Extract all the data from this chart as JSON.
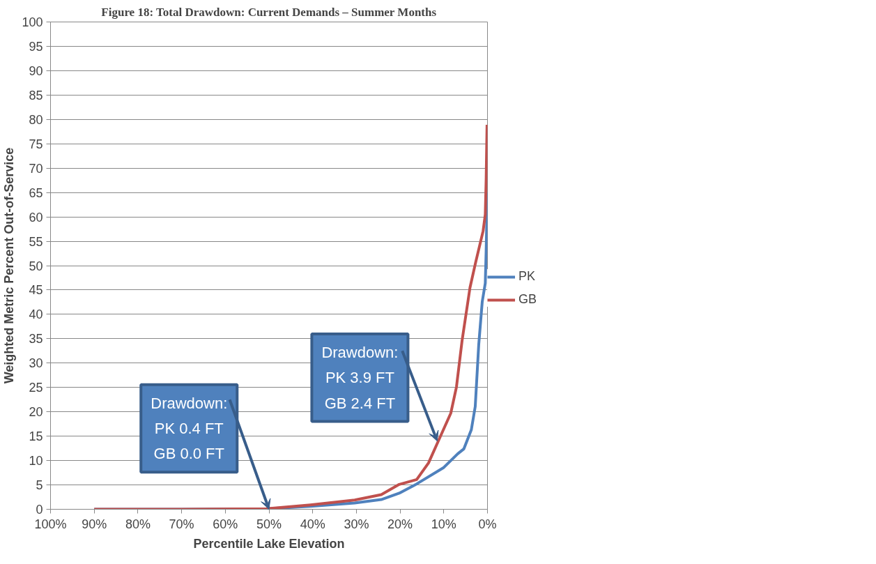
{
  "chart_data": {
    "type": "line",
    "title": "Figure 18: Total Drawdown: Current Demands – Summer Months",
    "xlabel": "Percentile Lake Elevation",
    "ylabel": "Weighted Metric Percent Out-of-Service",
    "xlim": [
      100,
      0
    ],
    "xticks": [
      {
        "value": 100,
        "label": "100%"
      },
      {
        "value": 90,
        "label": "90%"
      },
      {
        "value": 80,
        "label": "80%"
      },
      {
        "value": 70,
        "label": "70%"
      },
      {
        "value": 60,
        "label": "60%"
      },
      {
        "value": 50,
        "label": "50%"
      },
      {
        "value": 40,
        "label": "40%"
      },
      {
        "value": 30,
        "label": "30%"
      },
      {
        "value": 20,
        "label": "20%"
      },
      {
        "value": 10,
        "label": "10%"
      },
      {
        "value": 0,
        "label": "0%"
      }
    ],
    "ylim": [
      0,
      100
    ],
    "yticks": [
      0,
      5,
      10,
      15,
      20,
      25,
      30,
      35,
      40,
      45,
      50,
      55,
      60,
      65,
      70,
      75,
      80,
      85,
      90,
      95,
      100
    ],
    "grid": "y",
    "legend": "right",
    "series": [
      {
        "name": "PK",
        "color": "#4f81bd",
        "x": [
          90,
          70,
          50.6,
          40.5,
          30.4,
          24.3,
          20.2,
          16.2,
          10.1,
          6.8,
          5.4,
          3.7,
          2.8,
          2.0,
          1.2,
          0.5,
          0.3,
          0
        ],
        "values": [
          0,
          0,
          0.1,
          0.6,
          1.3,
          2.0,
          3.3,
          5.2,
          8.5,
          11.4,
          12.4,
          16.3,
          21.1,
          33.8,
          42.6,
          46.4,
          53.2,
          65
        ]
      },
      {
        "name": "GB",
        "color": "#c0504d",
        "x": [
          90,
          70,
          50.6,
          40.5,
          30.4,
          24.3,
          20.2,
          16.2,
          13.5,
          11.1,
          8.4,
          7.1,
          5.8,
          4.0,
          2.7,
          1.0,
          0.5,
          0.3,
          0.1
        ],
        "values": [
          0,
          0,
          0.1,
          0.9,
          1.9,
          3.0,
          5.1,
          6.1,
          9.5,
          14.3,
          19.7,
          25.1,
          34.7,
          45.5,
          50.7,
          57.1,
          60.5,
          67.8,
          78.9
        ]
      }
    ],
    "annotations": [
      {
        "text": "Drawdown:\nPK 0.4 FT\nGB 0.0 FT",
        "x": 50,
        "y": 0
      },
      {
        "text": "Drawdown:\nPK 3.9 FT\nGB 2.4 FT",
        "x": 11.5,
        "y": 14
      }
    ]
  }
}
